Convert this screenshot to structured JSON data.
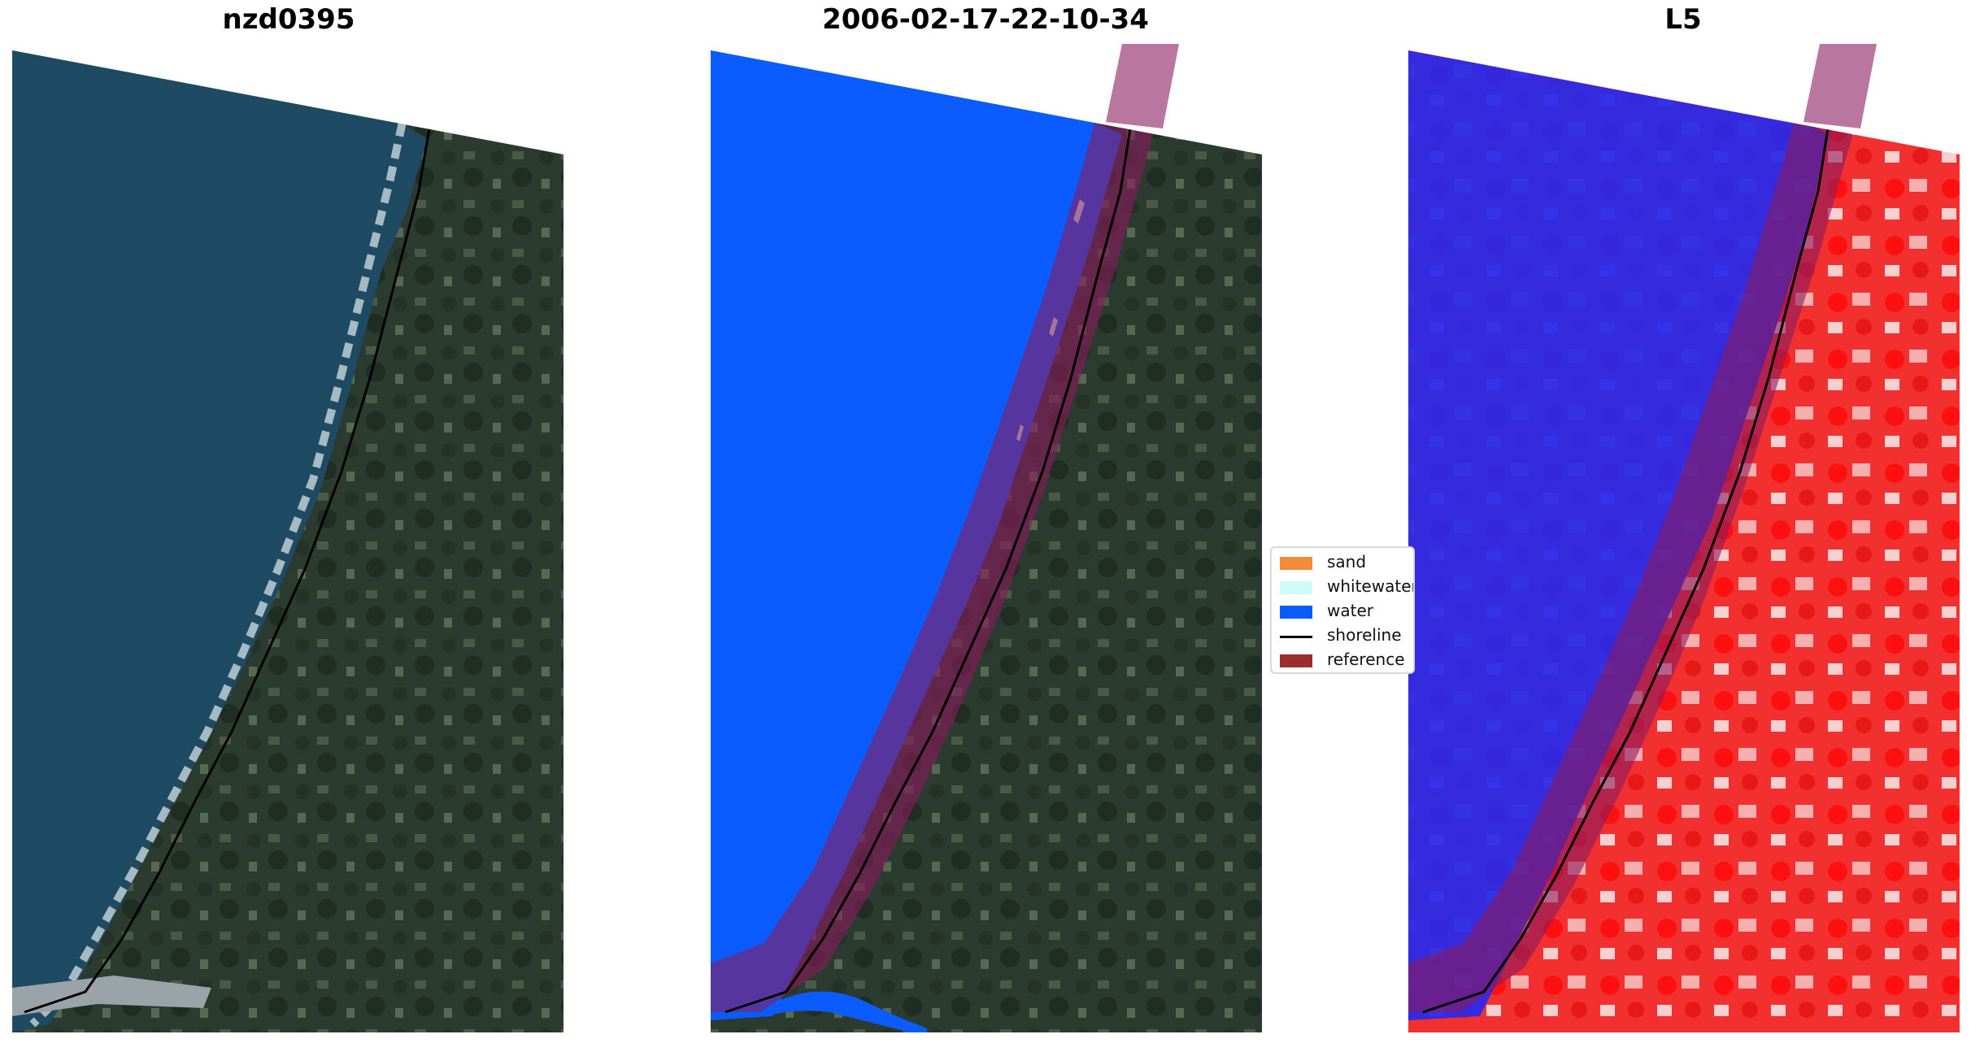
{
  "panels": [
    {
      "title": "nzd0395",
      "kind": "rgb-image"
    },
    {
      "title": "2006-02-17-22-10-34",
      "kind": "classified-image"
    },
    {
      "title": "L5",
      "kind": "index-image"
    }
  ],
  "legend": {
    "items": [
      {
        "label": "sand",
        "color": "#f28b3a",
        "type": "patch"
      },
      {
        "label": "whitewater",
        "color": "#cffbfb",
        "type": "patch"
      },
      {
        "label": "water",
        "color": "#0a5cff",
        "type": "patch"
      },
      {
        "label": "shoreline",
        "color": "#000000",
        "type": "line"
      },
      {
        "label": "reference",
        "color": "#9b2d2d",
        "type": "patch"
      }
    ]
  },
  "colors": {
    "ocean_rgb": "#1f4a63",
    "land_rgb": "#2c3b30",
    "water_class": "#0a5cff",
    "whitewater_class": "#cffbfb",
    "reference_band": "#8b1a5e",
    "index_water": "#2a2ae8",
    "index_land": "#f23030"
  }
}
